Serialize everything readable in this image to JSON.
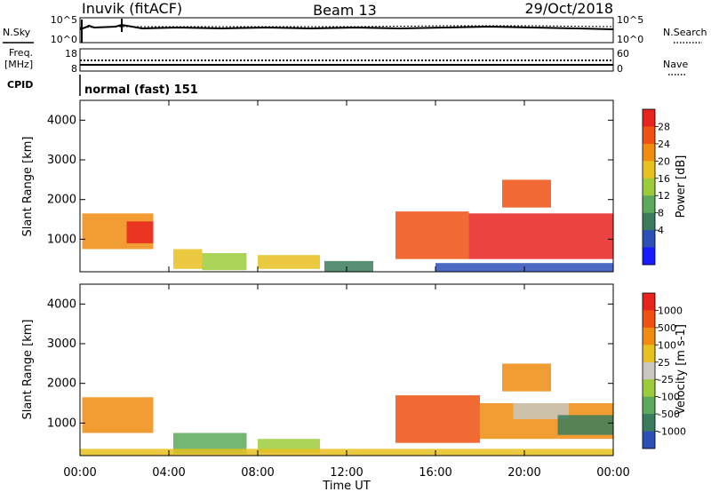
{
  "header": {
    "station": "Inuvik (fitACF)",
    "beam": "Beam 13",
    "date": "29/Oct/2018"
  },
  "status_rows": {
    "nsky": {
      "label": "N.Sky",
      "top_tick": "10^5",
      "bottom_tick": "10^0"
    },
    "nsearch": {
      "label": "N.Search",
      "top_tick": "10^5",
      "bottom_tick": "10^0"
    },
    "freq": {
      "label_line1": "Freq.",
      "label_line2": "[MHz]",
      "top_tick": "18",
      "bottom_tick": "8"
    },
    "nave": {
      "label": "Nave",
      "top_tick": "60",
      "bottom_tick": "0"
    },
    "cpid": {
      "label": "CPID",
      "value": "normal (fast) 151"
    }
  },
  "chart_data": [
    {
      "type": "heatmap",
      "name": "power",
      "ylabel": "Slant Range [km]",
      "xlabel": "Time UT",
      "x_ticks": [
        "00:00",
        "04:00",
        "08:00",
        "12:00",
        "16:00",
        "20:00",
        "00:00"
      ],
      "y_ticks": [
        "1000",
        "2000",
        "3000",
        "4000"
      ],
      "xlim_hours": [
        0,
        24
      ],
      "ylim_km": [
        180,
        4500
      ],
      "colorbar": {
        "label": "Power [dB]",
        "ticks": [
          "4",
          "8",
          "12",
          "16",
          "20",
          "24",
          "28"
        ],
        "range": [
          0,
          30
        ],
        "colors": [
          "#1a1aff",
          "#2c50b8",
          "#3a7d5c",
          "#5aaa5a",
          "#9ccc3c",
          "#e8c020",
          "#f08c10",
          "#f05010",
          "#e8231e"
        ]
      },
      "regions": [
        {
          "t0": 0.1,
          "t1": 3.3,
          "r0": 750,
          "r1": 1650,
          "level": 6
        },
        {
          "t0": 2.1,
          "t1": 3.3,
          "r0": 900,
          "r1": 1450,
          "level": 8
        },
        {
          "t0": 4.2,
          "t1": 5.5,
          "r0": 250,
          "r1": 750,
          "level": 5
        },
        {
          "t0": 5.5,
          "t1": 7.5,
          "r0": 220,
          "r1": 650,
          "level": 4
        },
        {
          "t0": 8.0,
          "t1": 10.8,
          "r0": 250,
          "r1": 600,
          "level": 5
        },
        {
          "t0": 11.0,
          "t1": 13.2,
          "r0": 180,
          "r1": 450,
          "level": 2
        },
        {
          "t0": 14.2,
          "t1": 17.5,
          "r0": 500,
          "r1": 1700,
          "level": 7
        },
        {
          "t0": 17.5,
          "t1": 24.0,
          "r0": 500,
          "r1": 1650,
          "level": 8
        },
        {
          "t0": 19.0,
          "t1": 21.2,
          "r0": 1800,
          "r1": 2500,
          "level": 7
        },
        {
          "t0": 16.0,
          "t1": 24.0,
          "r0": 180,
          "r1": 400,
          "level": 1
        }
      ]
    },
    {
      "type": "heatmap",
      "name": "velocity",
      "ylabel": "Slant Range [km]",
      "xlabel": "Time UT",
      "x_ticks": [
        "00:00",
        "04:00",
        "08:00",
        "12:00",
        "16:00",
        "20:00",
        "00:00"
      ],
      "y_ticks": [
        "1000",
        "2000",
        "3000",
        "4000"
      ],
      "xlim_hours": [
        0,
        24
      ],
      "ylim_km": [
        180,
        4500
      ],
      "colorbar": {
        "label": "Velocity [m s-1]",
        "ticks": [
          "1000",
          "500",
          "100",
          "25",
          "-25",
          "-100",
          "-500",
          "-1000"
        ],
        "range": [
          -1000,
          1000
        ],
        "colors": [
          "#2c50b8",
          "#3a7d5c",
          "#5aaa5a",
          "#9ccc3c",
          "#c8c8c0",
          "#e8c020",
          "#f08c10",
          "#f05010",
          "#e8231e"
        ]
      },
      "regions": [
        {
          "t0": 0.1,
          "t1": 3.3,
          "r0": 750,
          "r1": 1650,
          "level": 6
        },
        {
          "t0": 4.2,
          "t1": 7.5,
          "r0": 220,
          "r1": 750,
          "level": 2
        },
        {
          "t0": 8.0,
          "t1": 10.8,
          "r0": 250,
          "r1": 600,
          "level": 3
        },
        {
          "t0": 14.2,
          "t1": 18.0,
          "r0": 500,
          "r1": 1700,
          "level": 7
        },
        {
          "t0": 18.0,
          "t1": 24.0,
          "r0": 600,
          "r1": 1500,
          "level": 6
        },
        {
          "t0": 19.5,
          "t1": 22.0,
          "r0": 1100,
          "r1": 1500,
          "level": 4
        },
        {
          "t0": 21.5,
          "t1": 24.0,
          "r0": 700,
          "r1": 1200,
          "level": 1
        },
        {
          "t0": 19.0,
          "t1": 21.2,
          "r0": 1800,
          "r1": 2500,
          "level": 6
        },
        {
          "t0": 0,
          "t1": 24.0,
          "r0": 180,
          "r1": 350,
          "level": 5
        }
      ]
    }
  ]
}
